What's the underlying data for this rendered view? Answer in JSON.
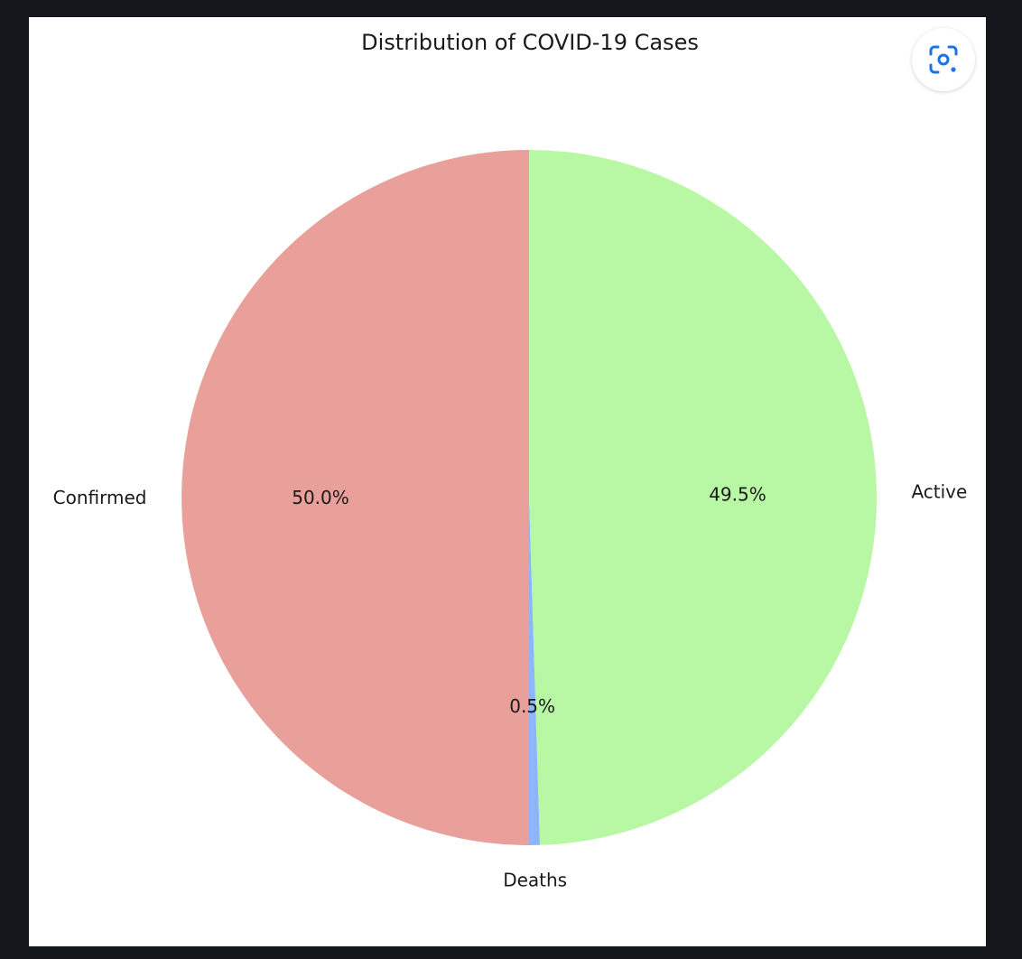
{
  "chart_data": {
    "type": "pie",
    "title": "Distribution of COVID-19 Cases",
    "categories": [
      "Confirmed",
      "Deaths",
      "Active"
    ],
    "values": [
      50.0,
      0.5,
      49.5
    ],
    "percent_labels": [
      "50.0%",
      "0.5%",
      "49.5%"
    ],
    "colors": [
      "#e99f9a",
      "#8fb4f8",
      "#b8f8a4"
    ],
    "start_angle_deg": 90,
    "direction": "counterclockwise",
    "legend": "none"
  },
  "ui": {
    "lens_button_icon": "google-lens-icon",
    "accent_color": "#1a73e8"
  }
}
